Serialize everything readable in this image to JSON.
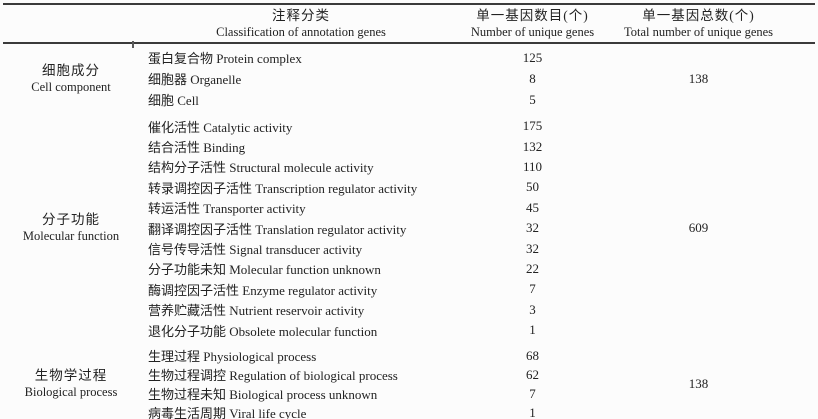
{
  "table": {
    "header": {
      "classification": {
        "zh": "注释分类",
        "en": "Classification of annotation genes"
      },
      "unique_genes": {
        "zh": "单一基因数目(个)",
        "en": "Number of unique genes"
      },
      "total_unique_genes": {
        "zh": "单一基因总数(个)",
        "en": "Total number of unique genes"
      }
    },
    "groups": [
      {
        "category_zh": "细胞成分",
        "category_en": "Cell component",
        "total": "138",
        "rows": [
          {
            "term": "蛋白复合物 Protein complex",
            "count": "125"
          },
          {
            "term": "细胞器 Organelle",
            "count": "8"
          },
          {
            "term": "细胞 Cell",
            "count": "5"
          }
        ]
      },
      {
        "category_zh": "分子功能",
        "category_en": "Molecular function",
        "total": "609",
        "rows": [
          {
            "term": "催化活性 Catalytic activity",
            "count": "175"
          },
          {
            "term": "结合活性 Binding",
            "count": "132"
          },
          {
            "term": "结构分子活性 Structural molecule activity",
            "count": "110"
          },
          {
            "term": "转录调控因子活性 Transcription regulator activity",
            "count": "50"
          },
          {
            "term": "转运活性 Transporter activity",
            "count": "45"
          },
          {
            "term": "翻译调控因子活性 Translation regulator activity",
            "count": "32"
          },
          {
            "term": "信号传导活性 Signal transducer activity",
            "count": "32"
          },
          {
            "term": "分子功能未知 Molecular function unknown",
            "count": "22"
          },
          {
            "term": "酶调控因子活性 Enzyme regulator activity",
            "count": "7"
          },
          {
            "term": "营养贮藏活性 Nutrient reservoir activity",
            "count": "3"
          },
          {
            "term": "退化分子功能 Obsolete molecular function",
            "count": "1"
          }
        ]
      },
      {
        "category_zh": "生物学过程",
        "category_en": "Biological process",
        "total": "138",
        "rows": [
          {
            "term": "生理过程 Physiological process",
            "count": "68"
          },
          {
            "term": "生物过程调控 Regulation of biological process",
            "count": "62"
          },
          {
            "term": "生物过程未知 Biological process unknown",
            "count": "7"
          },
          {
            "term": "病毒生活周期 Viral life cycle",
            "count": "1"
          }
        ]
      }
    ]
  },
  "colors": {
    "text": "#222222",
    "rule": "#3b3b3b",
    "background": "#fcfcfc"
  }
}
